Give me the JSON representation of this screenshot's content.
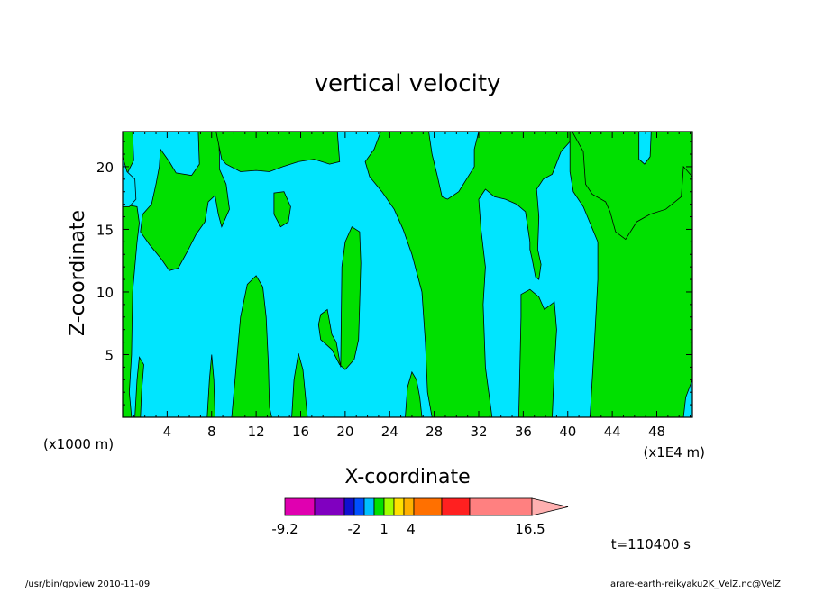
{
  "chart_data": {
    "type": "contour",
    "title": "vertical velocity",
    "xlabel": "X-coordinate",
    "ylabel": "Z-coordinate",
    "x_tick_labels": [
      "4",
      "8",
      "12",
      "16",
      "20",
      "24",
      "28",
      "32",
      "36",
      "40",
      "44",
      "48"
    ],
    "x_ticks": [
      4,
      8,
      12,
      16,
      20,
      24,
      28,
      32,
      36,
      40,
      44,
      48
    ],
    "y_tick_labels": [
      "5",
      "10",
      "15",
      "20"
    ],
    "y_ticks": [
      5,
      10,
      15,
      20
    ],
    "xlim": [
      0,
      51.2
    ],
    "ylim": [
      0,
      22.8
    ],
    "x_unit_left": "(x1000 m)",
    "x_unit_right": "(x1E4 m)",
    "timestamp": "t=110400 s",
    "colors": {
      "negative": "#00e5ff",
      "positive": "#00e000"
    },
    "colorbar": {
      "labels": [
        "-9.2",
        "-2",
        "1",
        "4",
        "16.5"
      ],
      "label_values": [
        -9.2,
        -2,
        1,
        4,
        16.5
      ],
      "colors": [
        "#e000b0",
        "#8000c0",
        "#1010d0",
        "#0050ff",
        "#00c0ff",
        "#00e000",
        "#a0ff00",
        "#ffe000",
        "#ffb000",
        "#ff7000",
        "#ff2020",
        "#ff8080",
        "#ffb0b0"
      ]
    },
    "regions_note": "",
    "positive_bands": [
      {
        "x0": 0,
        "x1": 1.5
      },
      {
        "x0": 1.2,
        "x1": 8.5,
        "ytop": 22.8,
        "ybottom": 11.8
      },
      {
        "x0": 7.6,
        "x1": 8.3,
        "ytop": 5
      },
      {
        "x0": 9.8,
        "x1": 13.2,
        "ytop": 11.3
      },
      {
        "x0": 15.2,
        "x1": 16.6,
        "ytop": 5
      },
      {
        "x0": 17.4,
        "x1": 21.2,
        "ytop": 15.2
      },
      {
        "x0": 25.4,
        "x1": 27,
        "ytop": 3.5
      },
      {
        "x0": 24.5,
        "x1": 32,
        "ytop": 22.8
      },
      {
        "x0": 32,
        "x1": 37.5,
        "ytop": 22.8,
        "ybottom": 17
      },
      {
        "x0": 35.6,
        "x1": 39,
        "ytop": 10
      },
      {
        "x0": 42,
        "x1": 51.2,
        "ytop": 22.8
      }
    ]
  },
  "footer": {
    "left": "/usr/bin/gpview   2010-11-09",
    "right": "arare-earth-reikyaku2K_VelZ.nc@VelZ"
  }
}
